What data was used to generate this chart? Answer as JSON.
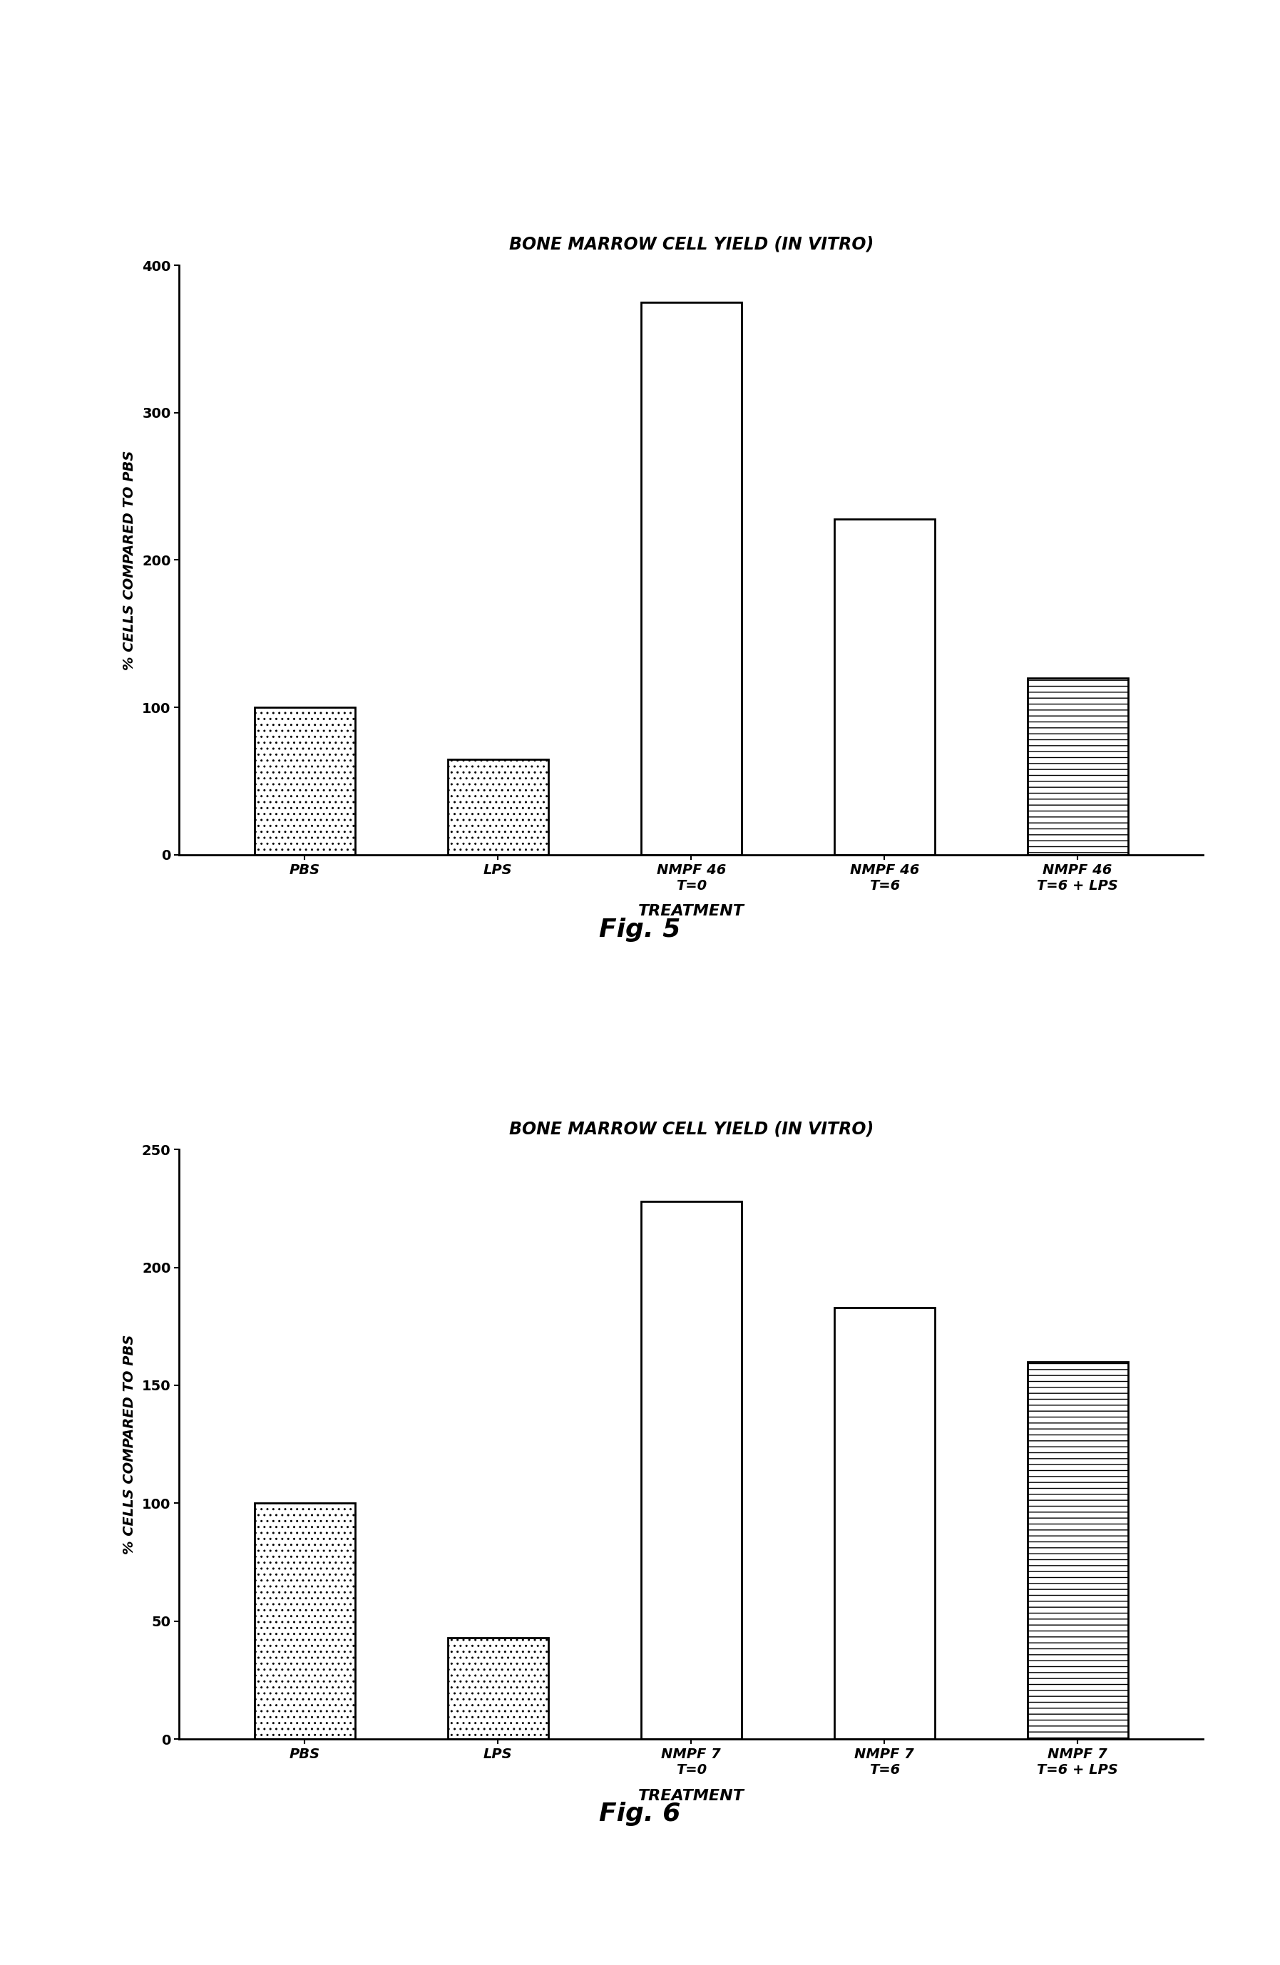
{
  "fig5": {
    "title": "BONE MARROW CELL YIELD (IN VITRO)",
    "ylabel": "% CELLS COMPARED TO PBS",
    "xlabel": "TREATMENT",
    "categories": [
      "PBS",
      "LPS",
      "NMPF 46\nT=0",
      "NMPF 46\nT=6",
      "NMPF 46\nT=6 + LPS"
    ],
    "values": [
      100,
      65,
      375,
      228,
      120
    ],
    "ylim": [
      0,
      400
    ],
    "yticks": [
      0,
      100,
      200,
      300,
      400
    ],
    "hatches": [
      "..",
      "..",
      "",
      "",
      "--"
    ],
    "facecolors": [
      "white",
      "white",
      "white",
      "white",
      "white"
    ],
    "fig_label": "Fig. 5"
  },
  "fig6": {
    "title": "BONE MARROW CELL YIELD (IN VITRO)",
    "ylabel": "% CELLS COMPARED TO PBS",
    "xlabel": "TREATMENT",
    "categories": [
      "PBS",
      "LPS",
      "NMPF 7\nT=0",
      "NMPF 7\nT=6",
      "NMPF 7\nT=6 + LPS"
    ],
    "values": [
      100,
      43,
      228,
      183,
      160
    ],
    "ylim": [
      0,
      250
    ],
    "yticks": [
      0,
      50,
      100,
      150,
      200,
      250
    ],
    "hatches": [
      "..",
      "..",
      "",
      "",
      "--"
    ],
    "facecolors": [
      "white",
      "white",
      "white",
      "white",
      "white"
    ],
    "fig_label": "Fig. 6"
  },
  "background_color": "#ffffff",
  "title_fontsize": 17,
  "ylabel_fontsize": 14,
  "xlabel_fontsize": 16,
  "tick_fontsize": 14,
  "xticklabel_fontsize": 14,
  "bar_width": 0.52,
  "fig_label_fontsize": 26,
  "linewidth": 2.0
}
